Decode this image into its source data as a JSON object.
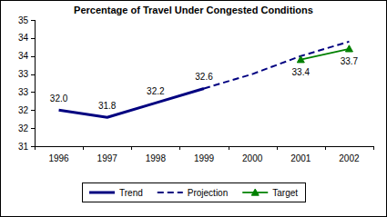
{
  "chart_data": {
    "type": "line",
    "title": "Percentage of Travel Under Congested Conditions",
    "categories": [
      "1996",
      "1997",
      "1998",
      "1999",
      "2000",
      "2001",
      "2002"
    ],
    "series": [
      {
        "name": "Trend",
        "color": "#000080",
        "line_style": "solid",
        "values": [
          32.0,
          31.8,
          32.2,
          32.6,
          null,
          null,
          null
        ],
        "value_labels": [
          "32.0",
          "31.8",
          "32.2",
          "32.6",
          null,
          null,
          null
        ]
      },
      {
        "name": "Projection",
        "color": "#000080",
        "line_style": "dashed",
        "values": [
          null,
          null,
          null,
          32.6,
          33.0,
          33.5,
          33.9
        ]
      },
      {
        "name": "Target",
        "color": "#008000",
        "line_style": "solid",
        "marker": "triangle",
        "values": [
          null,
          null,
          null,
          null,
          null,
          33.4,
          33.7
        ],
        "value_labels": [
          null,
          null,
          null,
          null,
          null,
          "33.4",
          "33.7"
        ]
      }
    ],
    "ylim": [
      31,
      34.5
    ],
    "yticks": [
      31,
      {
        "value": 31.5,
        "label": "32"
      },
      32,
      {
        "value": 32.5,
        "label": "33"
      },
      33,
      {
        "value": 33.5,
        "label": "34"
      },
      34,
      {
        "value": 34.5,
        "label": "35"
      }
    ],
    "grid": false,
    "data_labels": true,
    "legend": "bottom"
  }
}
